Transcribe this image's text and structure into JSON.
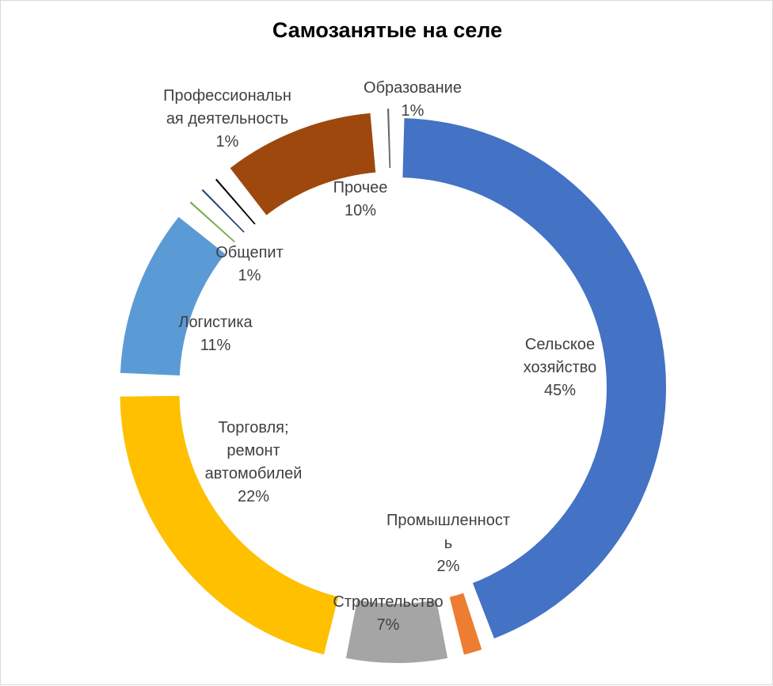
{
  "chart_data": {
    "type": "pie",
    "subtype": "exploded-donut",
    "title": "Самозанятые на селе",
    "legend": "none",
    "slices": [
      {
        "label_lines": [
          "Сельское",
          "хозяйство"
        ],
        "percent_label": "45%",
        "value": 45,
        "color": "#4472C4"
      },
      {
        "label_lines": [
          "Промышленност",
          "ь"
        ],
        "percent_label": "2%",
        "value": 2,
        "color": "#ED7D31"
      },
      {
        "label_lines": [
          "Строительство"
        ],
        "percent_label": "7%",
        "value": 7,
        "color": "#A5A5A5"
      },
      {
        "label_lines": [
          "Торговля;",
          "ремонт",
          "автомобилей"
        ],
        "percent_label": "22%",
        "value": 22,
        "color": "#FFC000"
      },
      {
        "label_lines": [
          "Логистика"
        ],
        "percent_label": "11%",
        "value": 11,
        "color": "#5B9BD5"
      },
      {
        "label_lines": [
          "Общепит"
        ],
        "percent_label": "1%",
        "value": 1,
        "color": "#70AD47"
      },
      {
        "label_lines": [],
        "percent_label": "",
        "value": 1,
        "color": "#264478"
      },
      {
        "label_lines": [
          "Профессиональн",
          "ая деятельность"
        ],
        "percent_label": "1%",
        "value": 1,
        "color": ""
      },
      {
        "label_lines": [
          "Прочее"
        ],
        "percent_label": "10%",
        "value": 10,
        "color": "#9E480E"
      },
      {
        "label_lines": [
          "Образование"
        ],
        "percent_label": "1%",
        "value": 1,
        "color": "#636363"
      }
    ]
  }
}
